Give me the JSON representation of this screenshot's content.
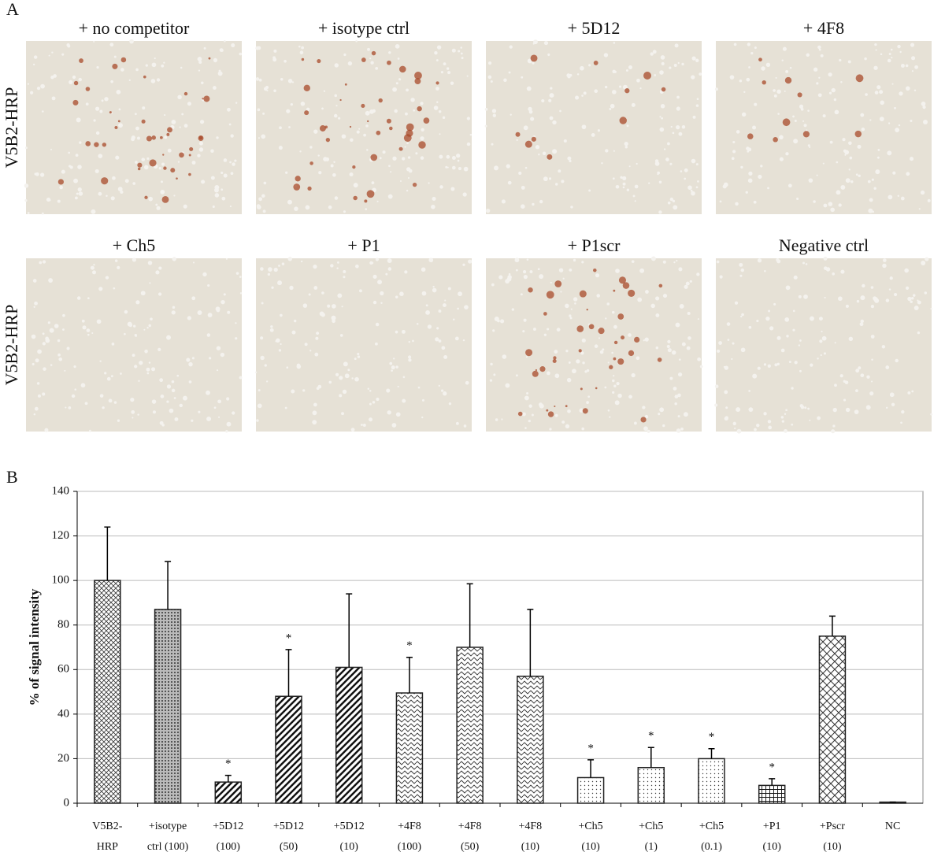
{
  "panel_a": {
    "label": "A",
    "rows": [
      {
        "label": "V5B2-HRP",
        "images": [
          "+ no competitor",
          "+ isotype ctrl",
          "+ 5D12",
          "+ 4F8"
        ]
      },
      {
        "label": "V5B2-HRP",
        "images": [
          "+ Ch5",
          "+ P1",
          "+ P1scr",
          "Negative ctrl"
        ]
      }
    ]
  },
  "panel_b_label": "B",
  "chart_data": {
    "type": "bar",
    "y_label": "% of signal intensity",
    "categories": [
      [
        "V5B2-",
        "HRP"
      ],
      [
        "+isotype",
        "ctrl (100)"
      ],
      [
        "+5D12",
        "(100)"
      ],
      [
        "+5D12",
        "(50)"
      ],
      [
        "+5D12",
        "(10)"
      ],
      [
        "+4F8",
        "(100)"
      ],
      [
        "+4F8",
        "(50)"
      ],
      [
        "+4F8",
        "(10)"
      ],
      [
        "+Ch5",
        "(10)"
      ],
      [
        "+Ch5",
        "(1)"
      ],
      [
        "+Ch5",
        "(0.1)"
      ],
      [
        "+P1",
        "(10)"
      ],
      [
        "+Pscr",
        "(10)"
      ],
      [
        "NC",
        null
      ]
    ],
    "values": [
      100,
      87,
      9.5,
      48,
      61,
      49.5,
      70,
      57,
      11.5,
      16,
      20,
      8,
      75,
      0.5
    ],
    "errors": [
      24,
      21.5,
      3,
      21,
      33,
      16,
      28.5,
      30,
      8,
      9,
      4.5,
      3,
      9,
      0
    ],
    "significance": [
      null,
      null,
      "*",
      "*",
      null,
      "*",
      null,
      null,
      "*",
      "*",
      "*",
      "*",
      null,
      null
    ],
    "ylim": [
      0,
      140
    ],
    "yticks": [
      0,
      20,
      40,
      60,
      80,
      100,
      120,
      140
    ],
    "grid": true,
    "color": "#222"
  }
}
